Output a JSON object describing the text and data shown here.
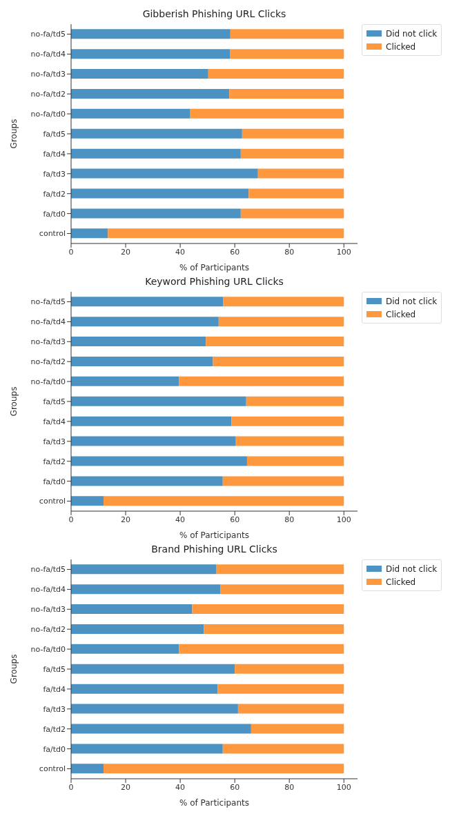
{
  "chart_data": [
    {
      "type": "bar",
      "title": "Gibberish Phishing URL Clicks",
      "xlabel": "% of Participants",
      "ylabel": "Groups",
      "orientation": "horizontal",
      "stacked": true,
      "legend": "top right",
      "xlim": [
        0,
        105
      ],
      "xticks": [
        0,
        20,
        40,
        60,
        80,
        100
      ],
      "categories": [
        "no-fa/td5",
        "no-fa/td4",
        "no-fa/td3",
        "no-fa/td2",
        "no-fa/td0",
        "fa/td5",
        "fa/td4",
        "fa/td3",
        "fa/td2",
        "fa/td0",
        "control"
      ],
      "series": [
        {
          "name": "Did not click",
          "color": "#4c92c3",
          "values": [
            58.4,
            58.2,
            50.3,
            58.0,
            43.7,
            62.7,
            62.2,
            68.5,
            65.1,
            62.2,
            13.5
          ]
        },
        {
          "name": "Clicked",
          "color": "#fe983e",
          "values": [
            41.6,
            41.8,
            49.7,
            42.0,
            56.3,
            37.3,
            37.8,
            31.5,
            34.9,
            37.8,
            86.5
          ]
        }
      ]
    },
    {
      "type": "bar",
      "title": "Keyword Phishing URL Clicks",
      "xlabel": "% of Participants",
      "ylabel": "Groups",
      "orientation": "horizontal",
      "stacked": true,
      "legend": "top right",
      "xlim": [
        0,
        105
      ],
      "xticks": [
        0,
        20,
        40,
        60,
        80,
        100
      ],
      "categories": [
        "no-fa/td5",
        "no-fa/td4",
        "no-fa/td3",
        "no-fa/td2",
        "no-fa/td0",
        "fa/td5",
        "fa/td4",
        "fa/td3",
        "fa/td2",
        "fa/td0",
        "control"
      ],
      "series": [
        {
          "name": "Did not click",
          "color": "#4c92c3",
          "values": [
            55.8,
            54.1,
            49.4,
            52.0,
            39.5,
            64.2,
            58.8,
            60.4,
            64.5,
            55.6,
            11.9
          ]
        },
        {
          "name": "Clicked",
          "color": "#fe983e",
          "values": [
            44.2,
            45.9,
            50.6,
            48.0,
            60.5,
            35.8,
            41.2,
            39.6,
            35.5,
            44.4,
            88.1
          ]
        }
      ]
    },
    {
      "type": "bar",
      "title": "Brand Phishing URL Clicks",
      "xlabel": "% of Participants",
      "ylabel": "Groups",
      "orientation": "horizontal",
      "stacked": true,
      "legend": "top right",
      "xlim": [
        0,
        105
      ],
      "xticks": [
        0,
        20,
        40,
        60,
        80,
        100
      ],
      "categories": [
        "no-fa/td5",
        "no-fa/td4",
        "no-fa/td3",
        "no-fa/td2",
        "no-fa/td0",
        "fa/td5",
        "fa/td4",
        "fa/td3",
        "fa/td2",
        "fa/td0",
        "control"
      ],
      "series": [
        {
          "name": "Did not click",
          "color": "#4c92c3",
          "values": [
            53.3,
            54.8,
            44.4,
            48.7,
            39.5,
            60.0,
            53.7,
            61.2,
            66.0,
            55.6,
            11.9
          ]
        },
        {
          "name": "Clicked",
          "color": "#fe983e",
          "values": [
            46.7,
            45.2,
            55.6,
            51.3,
            60.5,
            40.0,
            46.3,
            38.8,
            34.0,
            44.4,
            88.1
          ]
        }
      ]
    }
  ]
}
